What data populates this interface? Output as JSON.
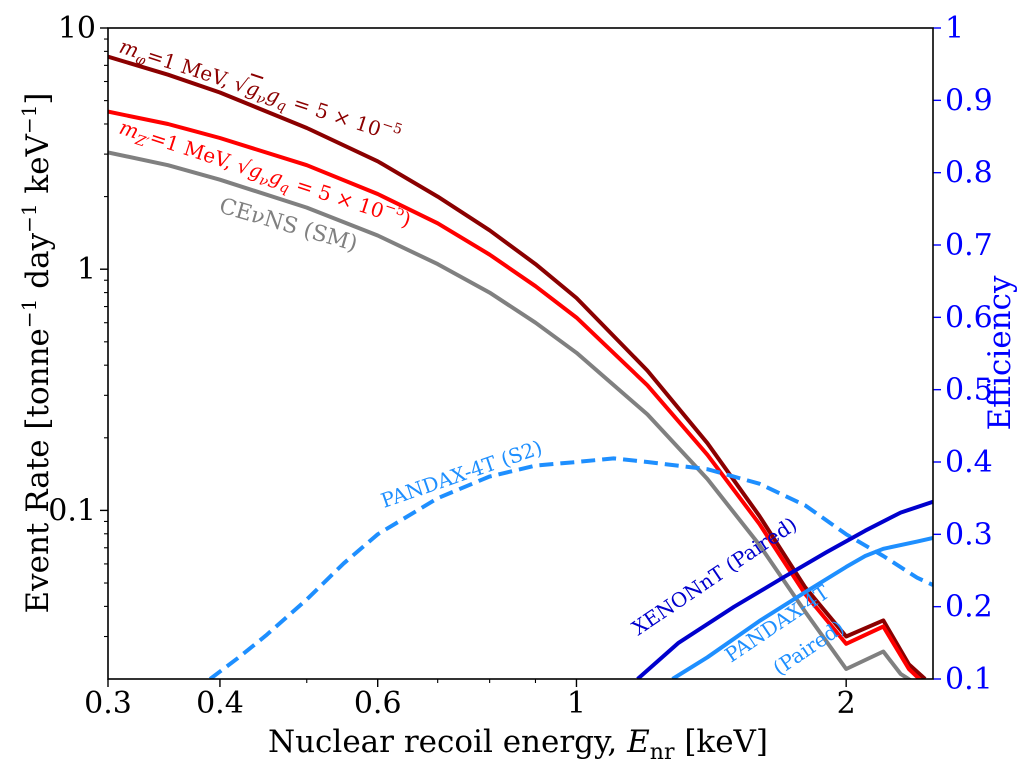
{
  "chart_data": {
    "type": "line",
    "x_scale": "log",
    "y_scale": "log",
    "xlim": [
      0.3,
      2.5
    ],
    "ylim": [
      0.02,
      10
    ],
    "y2lim": [
      0.1,
      1
    ],
    "grid": false,
    "xlabel": "Nuclear recoil energy, E_nr [keV]",
    "ylabel": "Event Rate [tonne⁻¹ day⁻¹ keV⁻¹]",
    "y2label": "Efficiency",
    "x_ticks": [
      {
        "value": 0.3,
        "label": "0.3"
      },
      {
        "value": 0.4,
        "label": "0.4"
      },
      {
        "value": 0.6,
        "label": "0.6"
      },
      {
        "value": 1,
        "label": "1"
      },
      {
        "value": 2,
        "label": "2"
      }
    ],
    "x_minor_ticks": [
      0.5,
      0.7,
      0.8,
      0.9
    ],
    "y_ticks": [
      {
        "value": 0.1,
        "label": "0.1"
      },
      {
        "value": 1,
        "label": "1"
      },
      {
        "value": 10,
        "label": "10"
      }
    ],
    "y_minor_ticks": [
      0.03,
      0.04,
      0.05,
      0.06,
      0.07,
      0.08,
      0.09,
      0.2,
      0.3,
      0.4,
      0.5,
      0.6,
      0.7,
      0.8,
      0.9,
      2,
      3,
      4,
      5,
      6,
      7,
      8,
      9
    ],
    "y2_ticks": [
      {
        "value": 0.1,
        "label": "0.1"
      },
      {
        "value": 0.2,
        "label": "0.2"
      },
      {
        "value": 0.3,
        "label": "0.3"
      },
      {
        "value": 0.4,
        "label": "0.4"
      },
      {
        "value": 0.5,
        "label": "0.5"
      },
      {
        "value": 0.6,
        "label": "0.6"
      },
      {
        "value": 0.7,
        "label": "0.7"
      },
      {
        "value": 0.8,
        "label": "0.8"
      },
      {
        "value": 0.9,
        "label": "0.9"
      },
      {
        "value": 1.0,
        "label": "1"
      }
    ],
    "series": [
      {
        "name": "m_φ=1 MeV, √(g_ν g_q) = 5 × 10⁻⁵",
        "axis": "left",
        "color": "#8b0000",
        "dash": "solid",
        "x": [
          0.3,
          0.35,
          0.4,
          0.5,
          0.6,
          0.7,
          0.8,
          0.9,
          1.0,
          1.2,
          1.4,
          1.6,
          1.8,
          2.0,
          2.2,
          2.35,
          2.45
        ],
        "y": [
          7.6,
          6.4,
          5.4,
          3.85,
          2.8,
          2.0,
          1.45,
          1.05,
          0.76,
          0.38,
          0.19,
          0.095,
          0.048,
          0.03,
          0.035,
          0.023,
          0.02
        ]
      },
      {
        "name": "m_Z'=1 MeV, √(g_ν g_q) = 5 × 10⁻⁵",
        "axis": "left",
        "color": "#ff0000",
        "dash": "solid",
        "x": [
          0.3,
          0.35,
          0.4,
          0.5,
          0.6,
          0.7,
          0.8,
          0.9,
          1.0,
          1.2,
          1.4,
          1.6,
          1.8,
          2.0,
          2.2,
          2.35,
          2.45
        ],
        "y": [
          4.5,
          4.0,
          3.5,
          2.7,
          2.05,
          1.55,
          1.15,
          0.85,
          0.63,
          0.33,
          0.17,
          0.088,
          0.045,
          0.028,
          0.033,
          0.022,
          0.019
        ]
      },
      {
        "name": "CEνNS (SM)",
        "axis": "left",
        "color": "#808080",
        "dash": "solid",
        "x": [
          0.3,
          0.35,
          0.4,
          0.5,
          0.6,
          0.7,
          0.8,
          0.9,
          1.0,
          1.2,
          1.4,
          1.6,
          1.8,
          2.0,
          2.2,
          2.3,
          2.4
        ],
        "y": [
          3.05,
          2.7,
          2.35,
          1.8,
          1.38,
          1.05,
          0.8,
          0.6,
          0.45,
          0.25,
          0.135,
          0.072,
          0.038,
          0.022,
          0.026,
          0.021,
          0.019
        ]
      },
      {
        "name": "PANDAX-4T (S2)",
        "axis": "right",
        "color": "#1e8fff",
        "dash": "dashed",
        "x": [
          0.39,
          0.42,
          0.45,
          0.5,
          0.55,
          0.6,
          0.7,
          0.8,
          0.9,
          1.0,
          1.1,
          1.2,
          1.4,
          1.6,
          1.8,
          2.0,
          2.2,
          2.4,
          2.5
        ],
        "y": [
          0.1,
          0.13,
          0.16,
          0.21,
          0.26,
          0.3,
          0.35,
          0.38,
          0.395,
          0.4,
          0.405,
          0.4,
          0.39,
          0.37,
          0.34,
          0.3,
          0.27,
          0.24,
          0.23
        ]
      },
      {
        "name": "XENONnT (Paired)",
        "axis": "right",
        "color": "#0000cd",
        "dash": "solid",
        "x": [
          1.17,
          1.3,
          1.5,
          1.7,
          1.9,
          2.1,
          2.3,
          2.5
        ],
        "y": [
          0.1,
          0.15,
          0.2,
          0.24,
          0.275,
          0.305,
          0.33,
          0.345
        ]
      },
      {
        "name": "PANDAX-4T (Paired)",
        "axis": "right",
        "color": "#1e8fff",
        "dash": "solid",
        "x": [
          1.28,
          1.4,
          1.6,
          1.8,
          2.0,
          2.1,
          2.2,
          2.4,
          2.5
        ],
        "y": [
          0.1,
          0.13,
          0.18,
          0.22,
          0.255,
          0.27,
          0.28,
          0.29,
          0.295
        ]
      }
    ],
    "annotations": {
      "phi": {
        "main": "m",
        "sub": "φ",
        "rest": "=1 MeV, √",
        "bar": "g",
        "bar_sub1": "ν",
        "bar2": "g",
        "bar_sub2": "q",
        "tail": " = 5 × 10",
        "exp": "−5"
      },
      "zprime": {
        "main": "m",
        "sub": "Z′",
        "rest": "=1 MeV, √",
        "bar": "g",
        "bar_sub1": "ν",
        "bar2": "g",
        "bar_sub2": "q",
        "tail": " = 5 × 10",
        "exp": "−5",
        "close": ")"
      },
      "sm": "CEνNS (SM)",
      "pandax_s2": "PANDAX-4T (S2)",
      "xenon": "XENONnT (Paired)",
      "pandax_paired_1": "PANDAX-4T",
      "pandax_paired_2": "(Paired)"
    },
    "right_axis_color": "#0000ff"
  }
}
